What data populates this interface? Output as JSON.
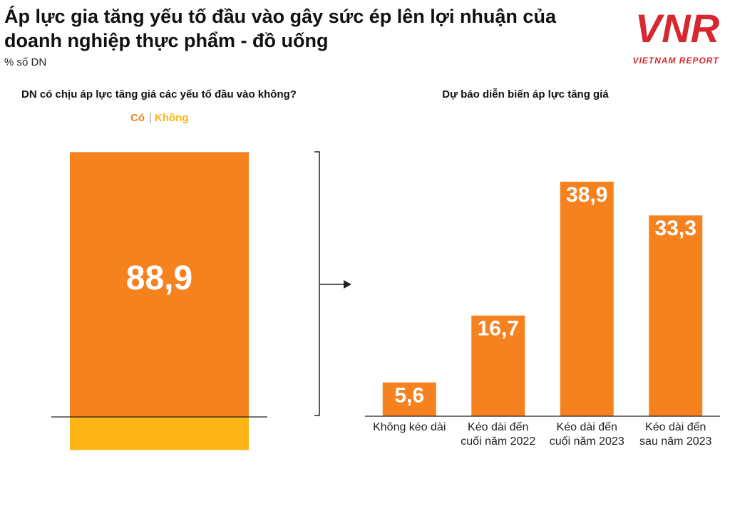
{
  "header": {
    "title": "Áp lực gia tăng yếu tố đầu vào gây sức ép lên lợi nhuận của doanh nghiệp thực phẩm - đồ uống",
    "subtitle": "% số DN"
  },
  "logo": {
    "mark": "VNR",
    "text": "VIETNAM REPORT"
  },
  "chart_data": [
    {
      "type": "stacked-bar",
      "title": "DN có chịu áp lực tăng giá các yếu tố đầu vào không?",
      "series": [
        {
          "name": "Có",
          "color": "#f5821f",
          "values": [
            88.9
          ],
          "value_labels": [
            "88,9"
          ]
        },
        {
          "name": "Không",
          "color": "#fdb515",
          "values": [
            11.1
          ]
        }
      ]
    },
    {
      "type": "bar",
      "title": "Dự báo diễn biến áp lực tăng giá",
      "categories": [
        "Không kéo dài",
        "Kéo dài đến cuối năm 2022",
        "Kéo dài đến cuối năm 2023",
        "Kéo dài đến sau năm 2023"
      ],
      "values": [
        5.6,
        16.7,
        38.9,
        33.3
      ],
      "value_labels": [
        "5,6",
        "16,7",
        "38,9",
        "33,3"
      ],
      "color": "#f5821f"
    }
  ]
}
